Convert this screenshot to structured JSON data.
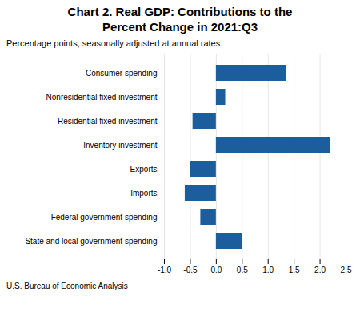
{
  "chart_data": {
    "type": "bar",
    "orientation": "horizontal",
    "title": "Chart 2. Real GDP: Contributions to the\nPercent Change in 2021:Q3",
    "subtitle": "Percentage points, seasonally adjusted at annual rates",
    "footer": "U.S. Bureau of Economic Analysis",
    "categories": [
      "Consumer spending",
      "Nonresidential fixed investment",
      "Residential fixed investment",
      "Inventory investment",
      "Exports",
      "Imports",
      "Federal government spending",
      "State and local government spending"
    ],
    "values": [
      1.35,
      0.18,
      -0.45,
      2.2,
      -0.5,
      -0.6,
      -0.3,
      0.5
    ],
    "color": "#1B5E9B",
    "xlim": [
      -1.0,
      2.5
    ],
    "xticks": [
      {
        "value": -1.0,
        "label": "-1.0"
      },
      -0.5,
      {
        "value": 0.0,
        "label": "0.0"
      },
      0.5,
      {
        "value": 1.0,
        "label": "1.0"
      },
      1.5,
      {
        "value": 2.0,
        "label": "2.0"
      },
      2.5
    ],
    "grid": true
  }
}
